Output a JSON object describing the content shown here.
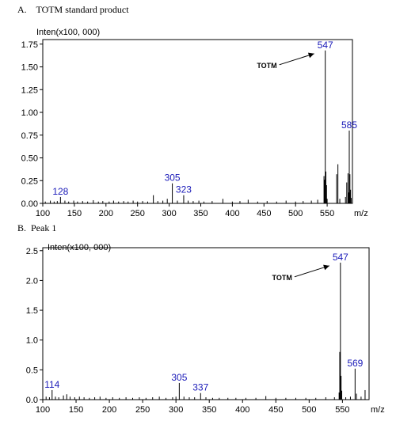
{
  "panels": [
    {
      "label": "A.    TOTM standard product"
    },
    {
      "label": "B.  Peak 1"
    }
  ],
  "chart_data": [
    {
      "type": "bar",
      "ylabel": "Inten(x100, 000)",
      "xlabel": "m/z",
      "xlim": [
        100,
        590
      ],
      "ylim": [
        0,
        1.8
      ],
      "x_ticks": [
        "100",
        "150",
        "200",
        "250",
        "300",
        "350",
        "400",
        "450",
        "500",
        "550"
      ],
      "y_ticks": [
        "0.00",
        "0.25",
        "0.50",
        "0.75",
        "1.00",
        "1.25",
        "1.50",
        "1.75"
      ],
      "annotation": {
        "text": "TOTM",
        "target_mz": 547
      },
      "peak_labels": [
        {
          "mz": 128,
          "text": "128"
        },
        {
          "mz": 305,
          "text": "305"
        },
        {
          "mz": 323,
          "text": "323"
        },
        {
          "mz": 547,
          "text": "547"
        },
        {
          "mz": 585,
          "text": "585"
        }
      ],
      "peaks": [
        [
          104,
          0.02
        ],
        [
          112,
          0.03
        ],
        [
          118,
          0.02
        ],
        [
          123,
          0.025
        ],
        [
          128,
          0.07
        ],
        [
          135,
          0.03
        ],
        [
          141,
          0.02
        ],
        [
          149,
          0.03
        ],
        [
          155,
          0.02
        ],
        [
          163,
          0.025
        ],
        [
          171,
          0.02
        ],
        [
          180,
          0.035
        ],
        [
          188,
          0.02
        ],
        [
          195,
          0.025
        ],
        [
          205,
          0.02
        ],
        [
          212,
          0.03
        ],
        [
          220,
          0.02
        ],
        [
          228,
          0.025
        ],
        [
          235,
          0.02
        ],
        [
          243,
          0.03
        ],
        [
          250,
          0.02
        ],
        [
          258,
          0.025
        ],
        [
          266,
          0.02
        ],
        [
          275,
          0.09
        ],
        [
          282,
          0.025
        ],
        [
          290,
          0.03
        ],
        [
          297,
          0.05
        ],
        [
          305,
          0.22
        ],
        [
          313,
          0.03
        ],
        [
          323,
          0.09
        ],
        [
          330,
          0.03
        ],
        [
          338,
          0.025
        ],
        [
          347,
          0.03
        ],
        [
          355,
          0.02
        ],
        [
          368,
          0.025
        ],
        [
          385,
          0.05
        ],
        [
          400,
          0.02
        ],
        [
          412,
          0.025
        ],
        [
          425,
          0.04
        ],
        [
          440,
          0.02
        ],
        [
          455,
          0.025
        ],
        [
          470,
          0.02
        ],
        [
          485,
          0.03
        ],
        [
          500,
          0.02
        ],
        [
          512,
          0.025
        ],
        [
          525,
          0.03
        ],
        [
          535,
          0.04
        ],
        [
          545,
          0.3
        ],
        [
          546,
          0.26
        ],
        [
          547,
          1.68
        ],
        [
          548,
          0.35
        ],
        [
          549,
          0.2
        ],
        [
          550,
          0.05
        ],
        [
          565,
          0.32
        ],
        [
          567,
          0.43
        ],
        [
          570,
          0.05
        ],
        [
          579,
          0.07
        ],
        [
          581,
          0.23
        ],
        [
          583,
          0.33
        ],
        [
          584,
          0.12
        ],
        [
          585,
          0.8
        ],
        [
          586,
          0.32
        ],
        [
          587,
          0.15
        ],
        [
          588,
          0.06
        ]
      ]
    },
    {
      "type": "bar",
      "ylabel": "Inten(x100, 000)",
      "xlabel": "m/z",
      "xlim": [
        100,
        590
      ],
      "ylim": [
        0,
        2.55
      ],
      "x_ticks": [
        "100",
        "150",
        "200",
        "250",
        "300",
        "350",
        "400",
        "450",
        "500",
        "550"
      ],
      "y_ticks": [
        "0.0",
        "0.5",
        "1.0",
        "1.5",
        "2.0",
        "2.5"
      ],
      "annotation": {
        "text": "TOTM",
        "target_mz": 547
      },
      "peak_labels": [
        {
          "mz": 114,
          "text": "114"
        },
        {
          "mz": 305,
          "text": "305"
        },
        {
          "mz": 337,
          "text": "337"
        },
        {
          "mz": 547,
          "text": "547"
        },
        {
          "mz": 569,
          "text": "569"
        }
      ],
      "peaks": [
        [
          105,
          0.05
        ],
        [
          110,
          0.04
        ],
        [
          114,
          0.16
        ],
        [
          119,
          0.05
        ],
        [
          124,
          0.04
        ],
        [
          131,
          0.07
        ],
        [
          136,
          0.09
        ],
        [
          141,
          0.05
        ],
        [
          148,
          0.04
        ],
        [
          155,
          0.05
        ],
        [
          162,
          0.04
        ],
        [
          170,
          0.03
        ],
        [
          178,
          0.04
        ],
        [
          186,
          0.05
        ],
        [
          195,
          0.03
        ],
        [
          205,
          0.04
        ],
        [
          215,
          0.03
        ],
        [
          225,
          0.04
        ],
        [
          235,
          0.03
        ],
        [
          245,
          0.04
        ],
        [
          255,
          0.03
        ],
        [
          265,
          0.04
        ],
        [
          275,
          0.05
        ],
        [
          285,
          0.03
        ],
        [
          295,
          0.04
        ],
        [
          300,
          0.05
        ],
        [
          305,
          0.28
        ],
        [
          312,
          0.05
        ],
        [
          320,
          0.04
        ],
        [
          328,
          0.04
        ],
        [
          337,
          0.11
        ],
        [
          345,
          0.04
        ],
        [
          355,
          0.03
        ],
        [
          365,
          0.03
        ],
        [
          378,
          0.03
        ],
        [
          390,
          0.03
        ],
        [
          405,
          0.03
        ],
        [
          420,
          0.03
        ],
        [
          435,
          0.06
        ],
        [
          450,
          0.03
        ],
        [
          465,
          0.03
        ],
        [
          480,
          0.03
        ],
        [
          495,
          0.03
        ],
        [
          510,
          0.03
        ],
        [
          525,
          0.04
        ],
        [
          538,
          0.04
        ],
        [
          545,
          0.12
        ],
        [
          546,
          0.8
        ],
        [
          547,
          2.3
        ],
        [
          548,
          0.4
        ],
        [
          549,
          0.15
        ],
        [
          555,
          0.04
        ],
        [
          562,
          0.05
        ],
        [
          569,
          0.52
        ],
        [
          571,
          0.1
        ],
        [
          578,
          0.05
        ],
        [
          584,
          0.16
        ]
      ]
    }
  ]
}
